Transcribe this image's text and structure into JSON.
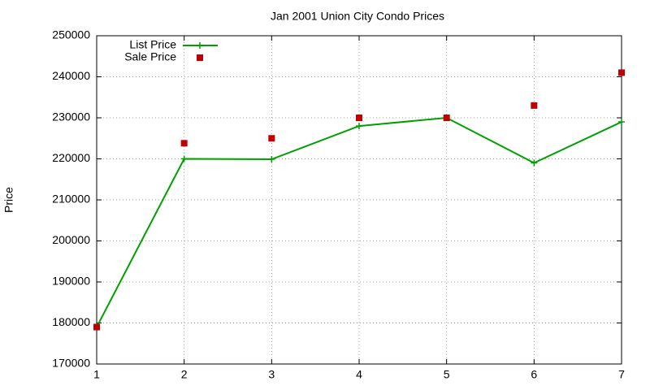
{
  "chart_data": {
    "type": "line",
    "title": "Jan 2001 Union City Condo Prices",
    "y_label": "Price",
    "x": [
      1,
      2,
      3,
      4,
      5,
      6,
      7
    ],
    "series": [
      {
        "name": "List Price",
        "color": "#00a000",
        "mode": "lines+points",
        "values": [
          179000,
          220000,
          219900,
          228000,
          230000,
          219000,
          229000
        ]
      },
      {
        "name": "Sale Price",
        "color": "#c00000",
        "mode": "points",
        "values": [
          179000,
          223800,
          225000,
          230000,
          230000,
          233000,
          241000
        ]
      }
    ],
    "xlim": [
      1,
      7
    ],
    "xticks": [
      1,
      2,
      3,
      4,
      5,
      6,
      7
    ],
    "ylim": [
      170000,
      250000
    ],
    "yticks": [
      170000,
      180000,
      190000,
      200000,
      210000,
      220000,
      230000,
      240000,
      250000
    ],
    "grid": true,
    "legend": "top-left"
  }
}
